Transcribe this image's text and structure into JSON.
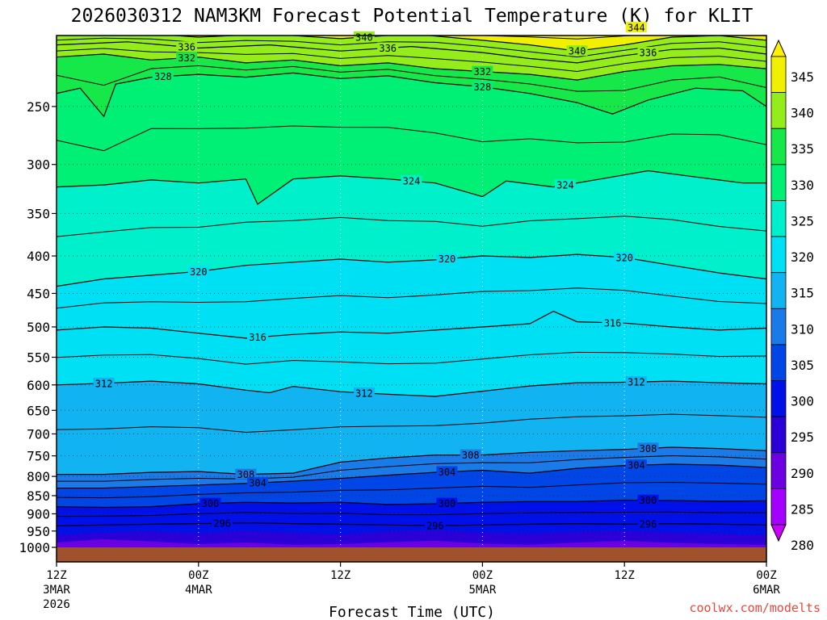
{
  "chart_data": {
    "type": "heatmap",
    "title": "2026030312 NAM3KM Forecast Potential Temperature (K) for KLIT",
    "xlabel": "Forecast Time (UTC)",
    "ylabel": "",
    "credit": "coolwx.com/modelts",
    "y_scale": "log-pressure",
    "y_units": "hPa",
    "ylim": [
      1000,
      200
    ],
    "y_ticks": [
      "250",
      "300",
      "350",
      "400",
      "450",
      "500",
      "550",
      "600",
      "650",
      "700",
      "750",
      "800",
      "850",
      "900",
      "950",
      "1000"
    ],
    "x_ticks": [
      {
        "l1": "12Z",
        "l2": "3MAR",
        "l3": "2026"
      },
      {
        "l1": "00Z",
        "l2": "4MAR",
        "l3": ""
      },
      {
        "l1": "12Z",
        "l2": "",
        "l3": ""
      },
      {
        "l1": "00Z",
        "l2": "5MAR",
        "l3": ""
      },
      {
        "l1": "12Z",
        "l2": "",
        "l3": ""
      },
      {
        "l1": "00Z",
        "l2": "6MAR",
        "l3": ""
      }
    ],
    "x_range_hours": [
      0,
      60
    ],
    "grid": true,
    "colorbar": {
      "levels": [
        280,
        285,
        290,
        295,
        300,
        305,
        310,
        315,
        320,
        325,
        330,
        335,
        340,
        345
      ],
      "colors": [
        "#cc00ff",
        "#a300ff",
        "#6b00e0",
        "#2a00d6",
        "#0010e8",
        "#0045e6",
        "#1a7ae8",
        "#11b3f0",
        "#00e0f5",
        "#00f0cc",
        "#00f075",
        "#17e84a",
        "#94ec1a",
        "#f0f000",
        "#fff000"
      ]
    },
    "contours": [
      {
        "value": 344,
        "label": "344",
        "points": [
          [
            0,
            196
          ],
          [
            6,
            195
          ],
          [
            12,
            197
          ],
          [
            18,
            196
          ],
          [
            24,
            198
          ],
          [
            30,
            195
          ],
          [
            36,
            197
          ],
          [
            40,
            196
          ],
          [
            46,
            194
          ],
          [
            52,
            196
          ],
          [
            56,
            195
          ],
          [
            60,
            196
          ]
        ]
      },
      {
        "value": 340,
        "label": "340",
        "points": [
          [
            0,
            200
          ],
          [
            6,
            198
          ],
          [
            12,
            201
          ],
          [
            18,
            199
          ],
          [
            24,
            202
          ],
          [
            30,
            199
          ],
          [
            36,
            203
          ],
          [
            40,
            206
          ],
          [
            44,
            210
          ],
          [
            48,
            206
          ],
          [
            52,
            201
          ],
          [
            56,
            200
          ],
          [
            60,
            203
          ]
        ]
      },
      {
        "value": 336,
        "label": "336",
        "points": [
          [
            0,
            206
          ],
          [
            6,
            204
          ],
          [
            12,
            208
          ],
          [
            18,
            206
          ],
          [
            24,
            210
          ],
          [
            30,
            207
          ],
          [
            36,
            211
          ],
          [
            40,
            215
          ],
          [
            44,
            218
          ],
          [
            48,
            213
          ],
          [
            52,
            209
          ],
          [
            56,
            208
          ],
          [
            60,
            212
          ]
        ]
      },
      {
        "value": 332,
        "label": "332",
        "points": [
          [
            0,
            214
          ],
          [
            4,
            212
          ],
          [
            8,
            216
          ],
          [
            12,
            214
          ],
          [
            16,
            218
          ],
          [
            20,
            216
          ],
          [
            24,
            220
          ],
          [
            28,
            218
          ],
          [
            32,
            222
          ],
          [
            36,
            224
          ],
          [
            40,
            226
          ],
          [
            44,
            230
          ],
          [
            48,
            224
          ],
          [
            52,
            220
          ],
          [
            56,
            219
          ],
          [
            60,
            222
          ]
        ]
      },
      {
        "value": 328,
        "label": "328",
        "points": [
          [
            0,
            240
          ],
          [
            2,
            236
          ],
          [
            4,
            258
          ],
          [
            5,
            233
          ],
          [
            8,
            228
          ],
          [
            12,
            226
          ],
          [
            16,
            228
          ],
          [
            20,
            225
          ],
          [
            24,
            229
          ],
          [
            28,
            227
          ],
          [
            32,
            232
          ],
          [
            36,
            235
          ],
          [
            40,
            240
          ],
          [
            44,
            247
          ],
          [
            47,
            256
          ],
          [
            50,
            245
          ],
          [
            54,
            236
          ],
          [
            58,
            238
          ],
          [
            60,
            250
          ]
        ]
      },
      {
        "value": 324,
        "label": "324",
        "points": [
          [
            0,
            322
          ],
          [
            4,
            320
          ],
          [
            8,
            315
          ],
          [
            12,
            318
          ],
          [
            16,
            314
          ],
          [
            17,
            340
          ],
          [
            20,
            314
          ],
          [
            24,
            311
          ],
          [
            28,
            314
          ],
          [
            32,
            318
          ],
          [
            36,
            332
          ],
          [
            38,
            316
          ],
          [
            42,
            322
          ],
          [
            46,
            314
          ],
          [
            50,
            306
          ],
          [
            54,
            312
          ],
          [
            58,
            318
          ],
          [
            60,
            318
          ]
        ]
      },
      {
        "value": 320,
        "label": "320",
        "points": [
          [
            0,
            440
          ],
          [
            4,
            430
          ],
          [
            8,
            425
          ],
          [
            12,
            420
          ],
          [
            16,
            412
          ],
          [
            20,
            408
          ],
          [
            24,
            404
          ],
          [
            28,
            408
          ],
          [
            32,
            405
          ],
          [
            36,
            400
          ],
          [
            40,
            402
          ],
          [
            44,
            398
          ],
          [
            48,
            402
          ],
          [
            52,
            412
          ],
          [
            56,
            422
          ],
          [
            60,
            430
          ]
        ]
      },
      {
        "value": 316,
        "label": "316",
        "points": [
          [
            0,
            505
          ],
          [
            4,
            500
          ],
          [
            8,
            502
          ],
          [
            12,
            510
          ],
          [
            16,
            518
          ],
          [
            20,
            512
          ],
          [
            24,
            508
          ],
          [
            28,
            510
          ],
          [
            32,
            505
          ],
          [
            36,
            500
          ],
          [
            40,
            495
          ],
          [
            42,
            476
          ],
          [
            44,
            492
          ],
          [
            48,
            494
          ],
          [
            52,
            500
          ],
          [
            56,
            505
          ],
          [
            60,
            502
          ]
        ]
      },
      {
        "value": 312,
        "label": "312",
        "points": [
          [
            0,
            600
          ],
          [
            4,
            597
          ],
          [
            8,
            593
          ],
          [
            12,
            598
          ],
          [
            16,
            610
          ],
          [
            18,
            615
          ],
          [
            20,
            603
          ],
          [
            24,
            613
          ],
          [
            28,
            618
          ],
          [
            32,
            622
          ],
          [
            36,
            612
          ],
          [
            40,
            602
          ],
          [
            44,
            596
          ],
          [
            48,
            595
          ],
          [
            52,
            593
          ],
          [
            56,
            596
          ],
          [
            60,
            598
          ]
        ]
      },
      {
        "value": 308,
        "label": "308",
        "points": [
          [
            0,
            795
          ],
          [
            4,
            795
          ],
          [
            8,
            790
          ],
          [
            12,
            788
          ],
          [
            16,
            795
          ],
          [
            20,
            792
          ],
          [
            24,
            765
          ],
          [
            28,
            755
          ],
          [
            32,
            748
          ],
          [
            36,
            748
          ],
          [
            40,
            742
          ],
          [
            44,
            738
          ],
          [
            48,
            735
          ],
          [
            52,
            730
          ],
          [
            56,
            733
          ],
          [
            60,
            738
          ]
        ]
      },
      {
        "value": 304,
        "label": "304",
        "points": [
          [
            0,
            830
          ],
          [
            4,
            830
          ],
          [
            8,
            826
          ],
          [
            12,
            822
          ],
          [
            16,
            818
          ],
          [
            20,
            812
          ],
          [
            24,
            805
          ],
          [
            28,
            797
          ],
          [
            32,
            790
          ],
          [
            36,
            785
          ],
          [
            40,
            792
          ],
          [
            44,
            780
          ],
          [
            48,
            773
          ],
          [
            52,
            770
          ],
          [
            56,
            772
          ],
          [
            60,
            778
          ]
        ]
      },
      {
        "value": 300,
        "label": "300",
        "points": [
          [
            0,
            880
          ],
          [
            4,
            882
          ],
          [
            8,
            880
          ],
          [
            12,
            872
          ],
          [
            16,
            868
          ],
          [
            20,
            870
          ],
          [
            24,
            868
          ],
          [
            28,
            874
          ],
          [
            32,
            872
          ],
          [
            36,
            868
          ],
          [
            40,
            866
          ],
          [
            44,
            866
          ],
          [
            48,
            862
          ],
          [
            52,
            863
          ],
          [
            56,
            865
          ],
          [
            60,
            864
          ]
        ]
      },
      {
        "value": 296,
        "label": "296",
        "points": [
          [
            0,
            935
          ],
          [
            4,
            932
          ],
          [
            8,
            930
          ],
          [
            12,
            928
          ],
          [
            16,
            926
          ],
          [
            20,
            928
          ],
          [
            24,
            930
          ],
          [
            28,
            932
          ],
          [
            32,
            934
          ],
          [
            36,
            932
          ],
          [
            40,
            930
          ],
          [
            44,
            928
          ],
          [
            48,
            930
          ],
          [
            52,
            928
          ],
          [
            56,
            930
          ],
          [
            60,
            932
          ]
        ]
      }
    ]
  }
}
